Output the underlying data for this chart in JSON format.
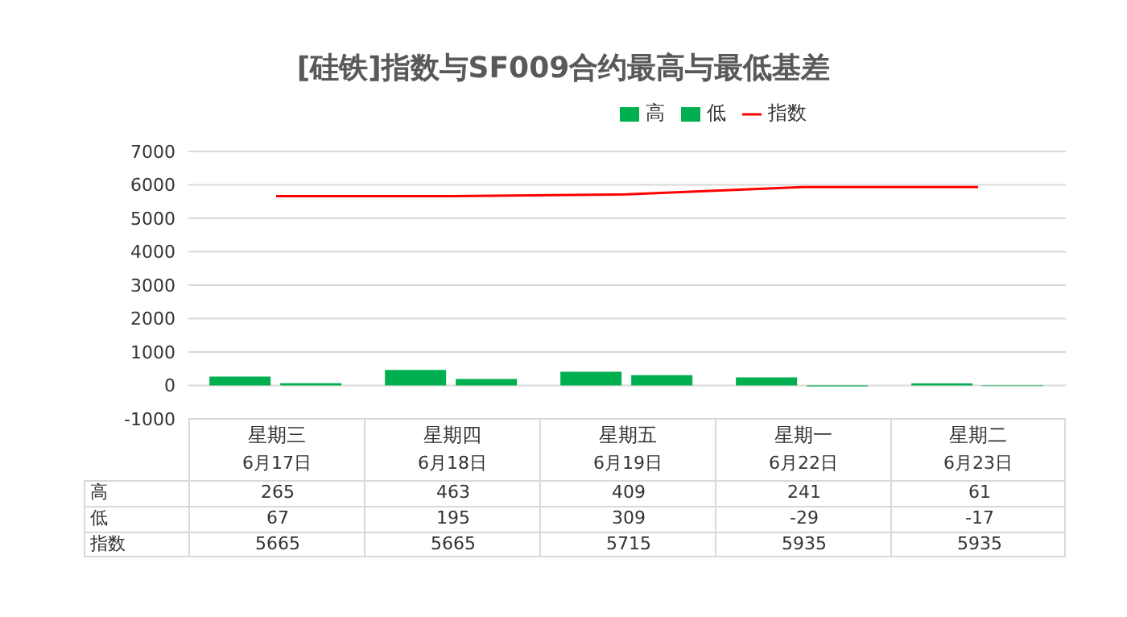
{
  "chart_data": {
    "type": "bar",
    "title": "[硅铁]指数与SF009合约最高与最低基差",
    "categories": [
      "星期三 6月17日",
      "星期四 6月18日",
      "星期五 6月19日",
      "星期一 6月22日",
      "星期二 6月23日"
    ],
    "series": [
      {
        "name": "高",
        "color": "#00b050",
        "values": [
          265,
          463,
          409,
          241,
          61
        ]
      },
      {
        "name": "低",
        "color": "#00b050",
        "values": [
          67,
          195,
          309,
          -29,
          -17
        ]
      },
      {
        "name": "指数",
        "type": "line",
        "color": "#ff0000",
        "values": [
          5665,
          5665,
          5715,
          5935,
          5935
        ]
      }
    ],
    "ylim": [
      -1000,
      7000
    ],
    "yticks": [
      -1000,
      0,
      1000,
      2000,
      3000,
      4000,
      5000,
      6000,
      7000
    ],
    "grid": "y",
    "legend": "top",
    "marker": "none",
    "line_style": "solid",
    "data_labels": true
  }
}
